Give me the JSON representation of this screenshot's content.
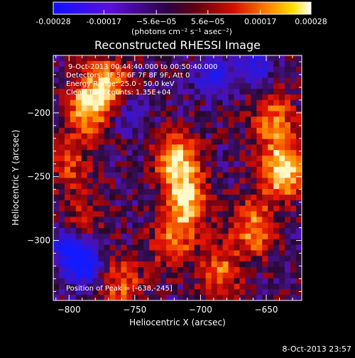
{
  "colorbar": {
    "tick_labels": [
      "-0.00028",
      "-0.00017",
      "−5.6e−05",
      "5.6e−05",
      "0.00017",
      "0.00028"
    ],
    "tick_values": [
      -0.00028,
      -0.00017,
      -5.6e-05,
      5.6e-05,
      0.00017,
      0.00028
    ],
    "range": [
      -0.00028,
      0.00028
    ],
    "unit_label": "(photons cm⁻² s⁻¹ asec⁻²)",
    "colors": [
      "#1010ff",
      "#6010d0",
      "#300048",
      "#c00000",
      "#ff6a00",
      "#ffd000",
      "#ffffff"
    ]
  },
  "plot": {
    "title": "Reconstructed RHESSI Image",
    "info_lines": [
      "9-Oct-2013 00:44:40.000 to 00:50:40.000",
      "Detectors: 3F 5F 6F 7F 8F 9F, Att 0",
      "Energy Range: 25.0 - 50.0 keV",
      "Clean    Total counts: 1.35E+04"
    ],
    "peak_text": "Position of Peak = [-638,-245]",
    "footer_date": "8-Oct-2013 23:57"
  },
  "chart_data": {
    "type": "heatmap",
    "title": "Reconstructed RHESSI Image",
    "xlabel": "Heliocentric X (arcsec)",
    "ylabel": "Heliocentric Y (arcsec)",
    "xlim": [
      -812,
      -623
    ],
    "ylim": [
      -347,
      -155
    ],
    "x_ticks": [
      -800,
      -750,
      -700,
      -650
    ],
    "y_ticks": [
      -200,
      -250,
      -300
    ],
    "x_tick_labels": [
      "−800",
      "−750",
      "−700",
      "−650"
    ],
    "y_tick_labels": [
      "−200",
      "−250",
      "−300"
    ],
    "peak": [
      -638,
      -245
    ],
    "sources": [
      {
        "x": -785,
        "y": -195,
        "intensity": 0.85
      },
      {
        "x": -770,
        "y": -178,
        "intensity": 0.7
      },
      {
        "x": -718,
        "y": -238,
        "intensity": 0.9
      },
      {
        "x": -710,
        "y": -270,
        "intensity": 0.8
      },
      {
        "x": -722,
        "y": -300,
        "intensity": 0.6
      },
      {
        "x": -638,
        "y": -245,
        "intensity": 1.0
      },
      {
        "x": -645,
        "y": -205,
        "intensity": 0.65
      },
      {
        "x": -660,
        "y": -290,
        "intensity": 0.7
      },
      {
        "x": -685,
        "y": -325,
        "intensity": 0.6
      },
      {
        "x": -760,
        "y": -335,
        "intensity": 0.55
      },
      {
        "x": -800,
        "y": -240,
        "intensity": 0.45
      },
      {
        "x": -790,
        "y": -285,
        "intensity": 0.35
      }
    ],
    "negative_sources": [
      {
        "x": -790,
        "y": -320,
        "intensity": 0.9
      },
      {
        "x": -800,
        "y": -305,
        "intensity": 0.7
      },
      {
        "x": -690,
        "y": -172,
        "intensity": 0.6
      },
      {
        "x": -660,
        "y": -165,
        "intensity": 0.5
      },
      {
        "x": -755,
        "y": -200,
        "intensity": 0.4
      }
    ]
  }
}
